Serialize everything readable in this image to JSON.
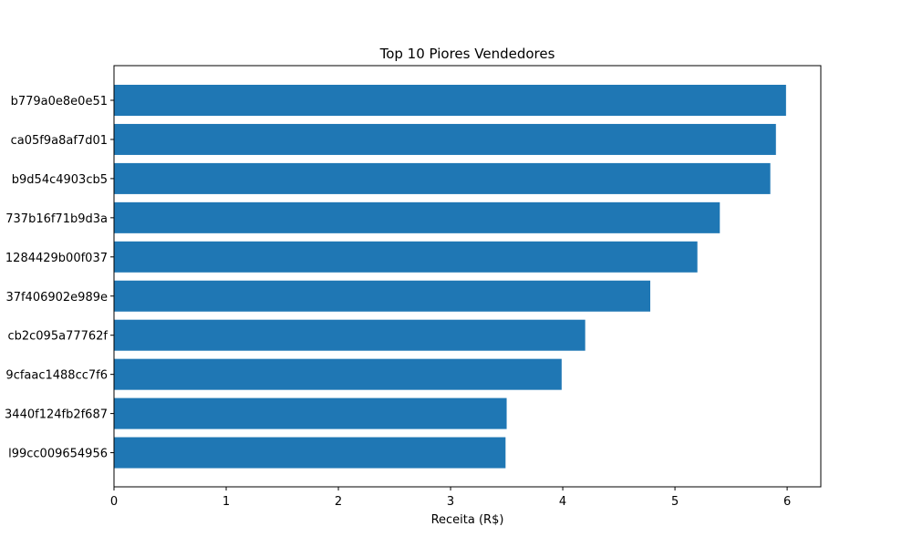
{
  "chart_data": {
    "type": "bar",
    "orientation": "horizontal",
    "title": "Top 10 Piores Vendedores",
    "xlabel": "Receita (R$)",
    "ylabel": "",
    "xlim": [
      0,
      6.3
    ],
    "xticks": [
      "0",
      "1",
      "2",
      "3",
      "4",
      "5",
      "6"
    ],
    "categories": [
      "b779a0e8e0e51",
      "ca05f9a8af7d01",
      "b9d54c4903cb5",
      "737b16f71b9d3a",
      "1284429b00f037",
      "37f406902e989e",
      "cb2c095a77762f",
      "9cfaac1488cc7f6",
      "3440f124fb2f687",
      "l99cc009654956"
    ],
    "values": [
      5.99,
      5.9,
      5.85,
      5.4,
      5.2,
      4.78,
      4.2,
      3.99,
      3.5,
      3.49
    ],
    "bar_color": "#1f77b4",
    "grid": false,
    "legend": "none"
  }
}
